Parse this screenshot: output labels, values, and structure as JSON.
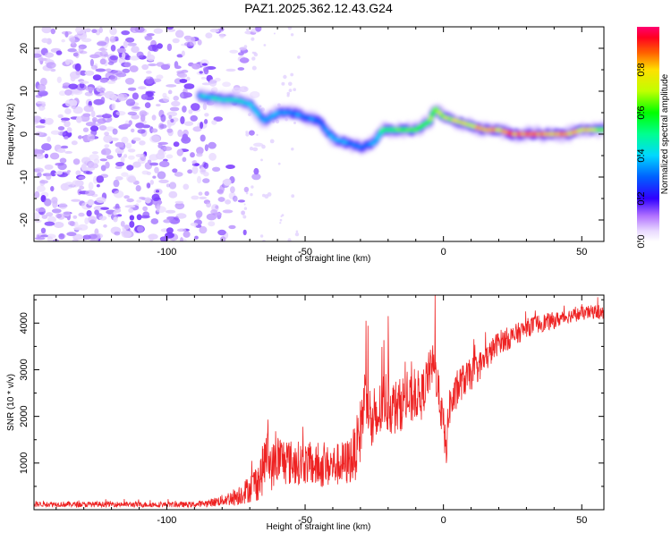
{
  "chart_data": [
    {
      "type": "heatmap",
      "title": "PAZ1.2025.362.12.43.G24",
      "xlabel": "Height of straight line (km)",
      "ylabel": "Frequency (Hz)",
      "xlim": [
        -148,
        58
      ],
      "ylim": [
        -25,
        25
      ],
      "xticks": [
        -100,
        -50,
        0,
        50
      ],
      "yticks": [
        -20,
        -10,
        0,
        10,
        20
      ],
      "colorbar": {
        "label": "Normalized spectral amplitude",
        "range": [
          0,
          1
        ],
        "ticks": [
          0.0,
          0.2,
          0.4,
          0.6,
          0.8
        ],
        "tick_labels": [
          "0.0",
          "0.2",
          "0.4",
          "0.6",
          "0.8"
        ]
      },
      "noise_region": {
        "x_from": -148,
        "x_to": -70,
        "typical_amplitude": 0.12
      },
      "ridge": {
        "x": [
          -88,
          -80,
          -75,
          -70,
          -65,
          -60,
          -55,
          -50,
          -45,
          -40,
          -35,
          -30,
          -25,
          -22,
          -20,
          -15,
          -10,
          -5,
          -3,
          0,
          5,
          10,
          15,
          20,
          25,
          30,
          35,
          40,
          45,
          50,
          55,
          58
        ],
        "y": [
          9,
          8,
          8,
          7,
          3,
          5,
          5,
          4,
          3,
          -1,
          -2,
          -3,
          -2,
          1,
          1,
          1,
          1,
          3,
          6,
          4,
          3,
          2,
          1,
          1,
          0,
          0,
          0,
          0,
          0,
          1,
          1,
          1
        ],
        "amplitude": [
          0.4,
          0.45,
          0.45,
          0.4,
          0.35,
          0.35,
          0.35,
          0.35,
          0.3,
          0.35,
          0.35,
          0.3,
          0.35,
          0.5,
          0.55,
          0.6,
          0.6,
          0.6,
          0.6,
          0.7,
          0.7,
          0.75,
          0.8,
          0.8,
          0.85,
          0.85,
          0.85,
          0.85,
          0.85,
          0.8,
          0.75,
          0.65
        ]
      }
    },
    {
      "type": "line",
      "title": "",
      "xlabel": "Height of straight line (km)",
      "ylabel": "SNR (10 * v/v)",
      "xlim": [
        -148,
        58
      ],
      "ylim": [
        0,
        4600
      ],
      "xticks": [
        -100,
        -50,
        0,
        50
      ],
      "yticks": [
        1000,
        2000,
        3000,
        4000
      ],
      "color": "#ee2222",
      "series": [
        {
          "name": "SNR",
          "x": [
            -148,
            -140,
            -130,
            -120,
            -110,
            -100,
            -90,
            -85,
            -80,
            -75,
            -70,
            -66,
            -64,
            -62,
            -60,
            -55,
            -50,
            -45,
            -40,
            -35,
            -32,
            -30,
            -28,
            -26,
            -25,
            -22,
            -21,
            -20,
            -18,
            -16,
            -14,
            -12,
            -10,
            -8,
            -6,
            -4,
            -3,
            -2,
            0,
            1,
            2,
            4,
            6,
            8,
            10,
            15,
            20,
            25,
            30,
            35,
            40,
            45,
            50,
            55,
            58
          ],
          "y": [
            120,
            120,
            110,
            120,
            110,
            110,
            110,
            140,
            200,
            280,
            450,
            700,
            1200,
            900,
            1100,
            1000,
            1000,
            900,
            950,
            1000,
            1200,
            1700,
            2600,
            1800,
            1700,
            2300,
            2400,
            2200,
            2200,
            2200,
            2400,
            2300,
            2500,
            2400,
            2800,
            3100,
            3000,
            2600,
            1800,
            1200,
            2200,
            2400,
            2700,
            2800,
            2900,
            3200,
            3600,
            3700,
            3900,
            4000,
            4050,
            4150,
            4200,
            4250,
            4200
          ],
          "noise": [
            60,
            60,
            60,
            60,
            60,
            60,
            60,
            80,
            120,
            200,
            300,
            500,
            600,
            500,
            550,
            500,
            450,
            450,
            450,
            500,
            600,
            700,
            700,
            650,
            650,
            650,
            650,
            600,
            600,
            600,
            550,
            550,
            550,
            500,
            500,
            450,
            450,
            450,
            450,
            450,
            450,
            400,
            400,
            350,
            350,
            300,
            250,
            250,
            200,
            200,
            180,
            150,
            150,
            150,
            150
          ]
        }
      ],
      "spikes": [
        {
          "x": -28,
          "y": 4050
        },
        {
          "x": -25,
          "y": 2600
        },
        {
          "x": -20,
          "y": 4150
        },
        {
          "x": -3,
          "y": 4600
        },
        {
          "x": -2,
          "y": 3000
        },
        {
          "x": 1,
          "y": 1000
        }
      ]
    }
  ]
}
